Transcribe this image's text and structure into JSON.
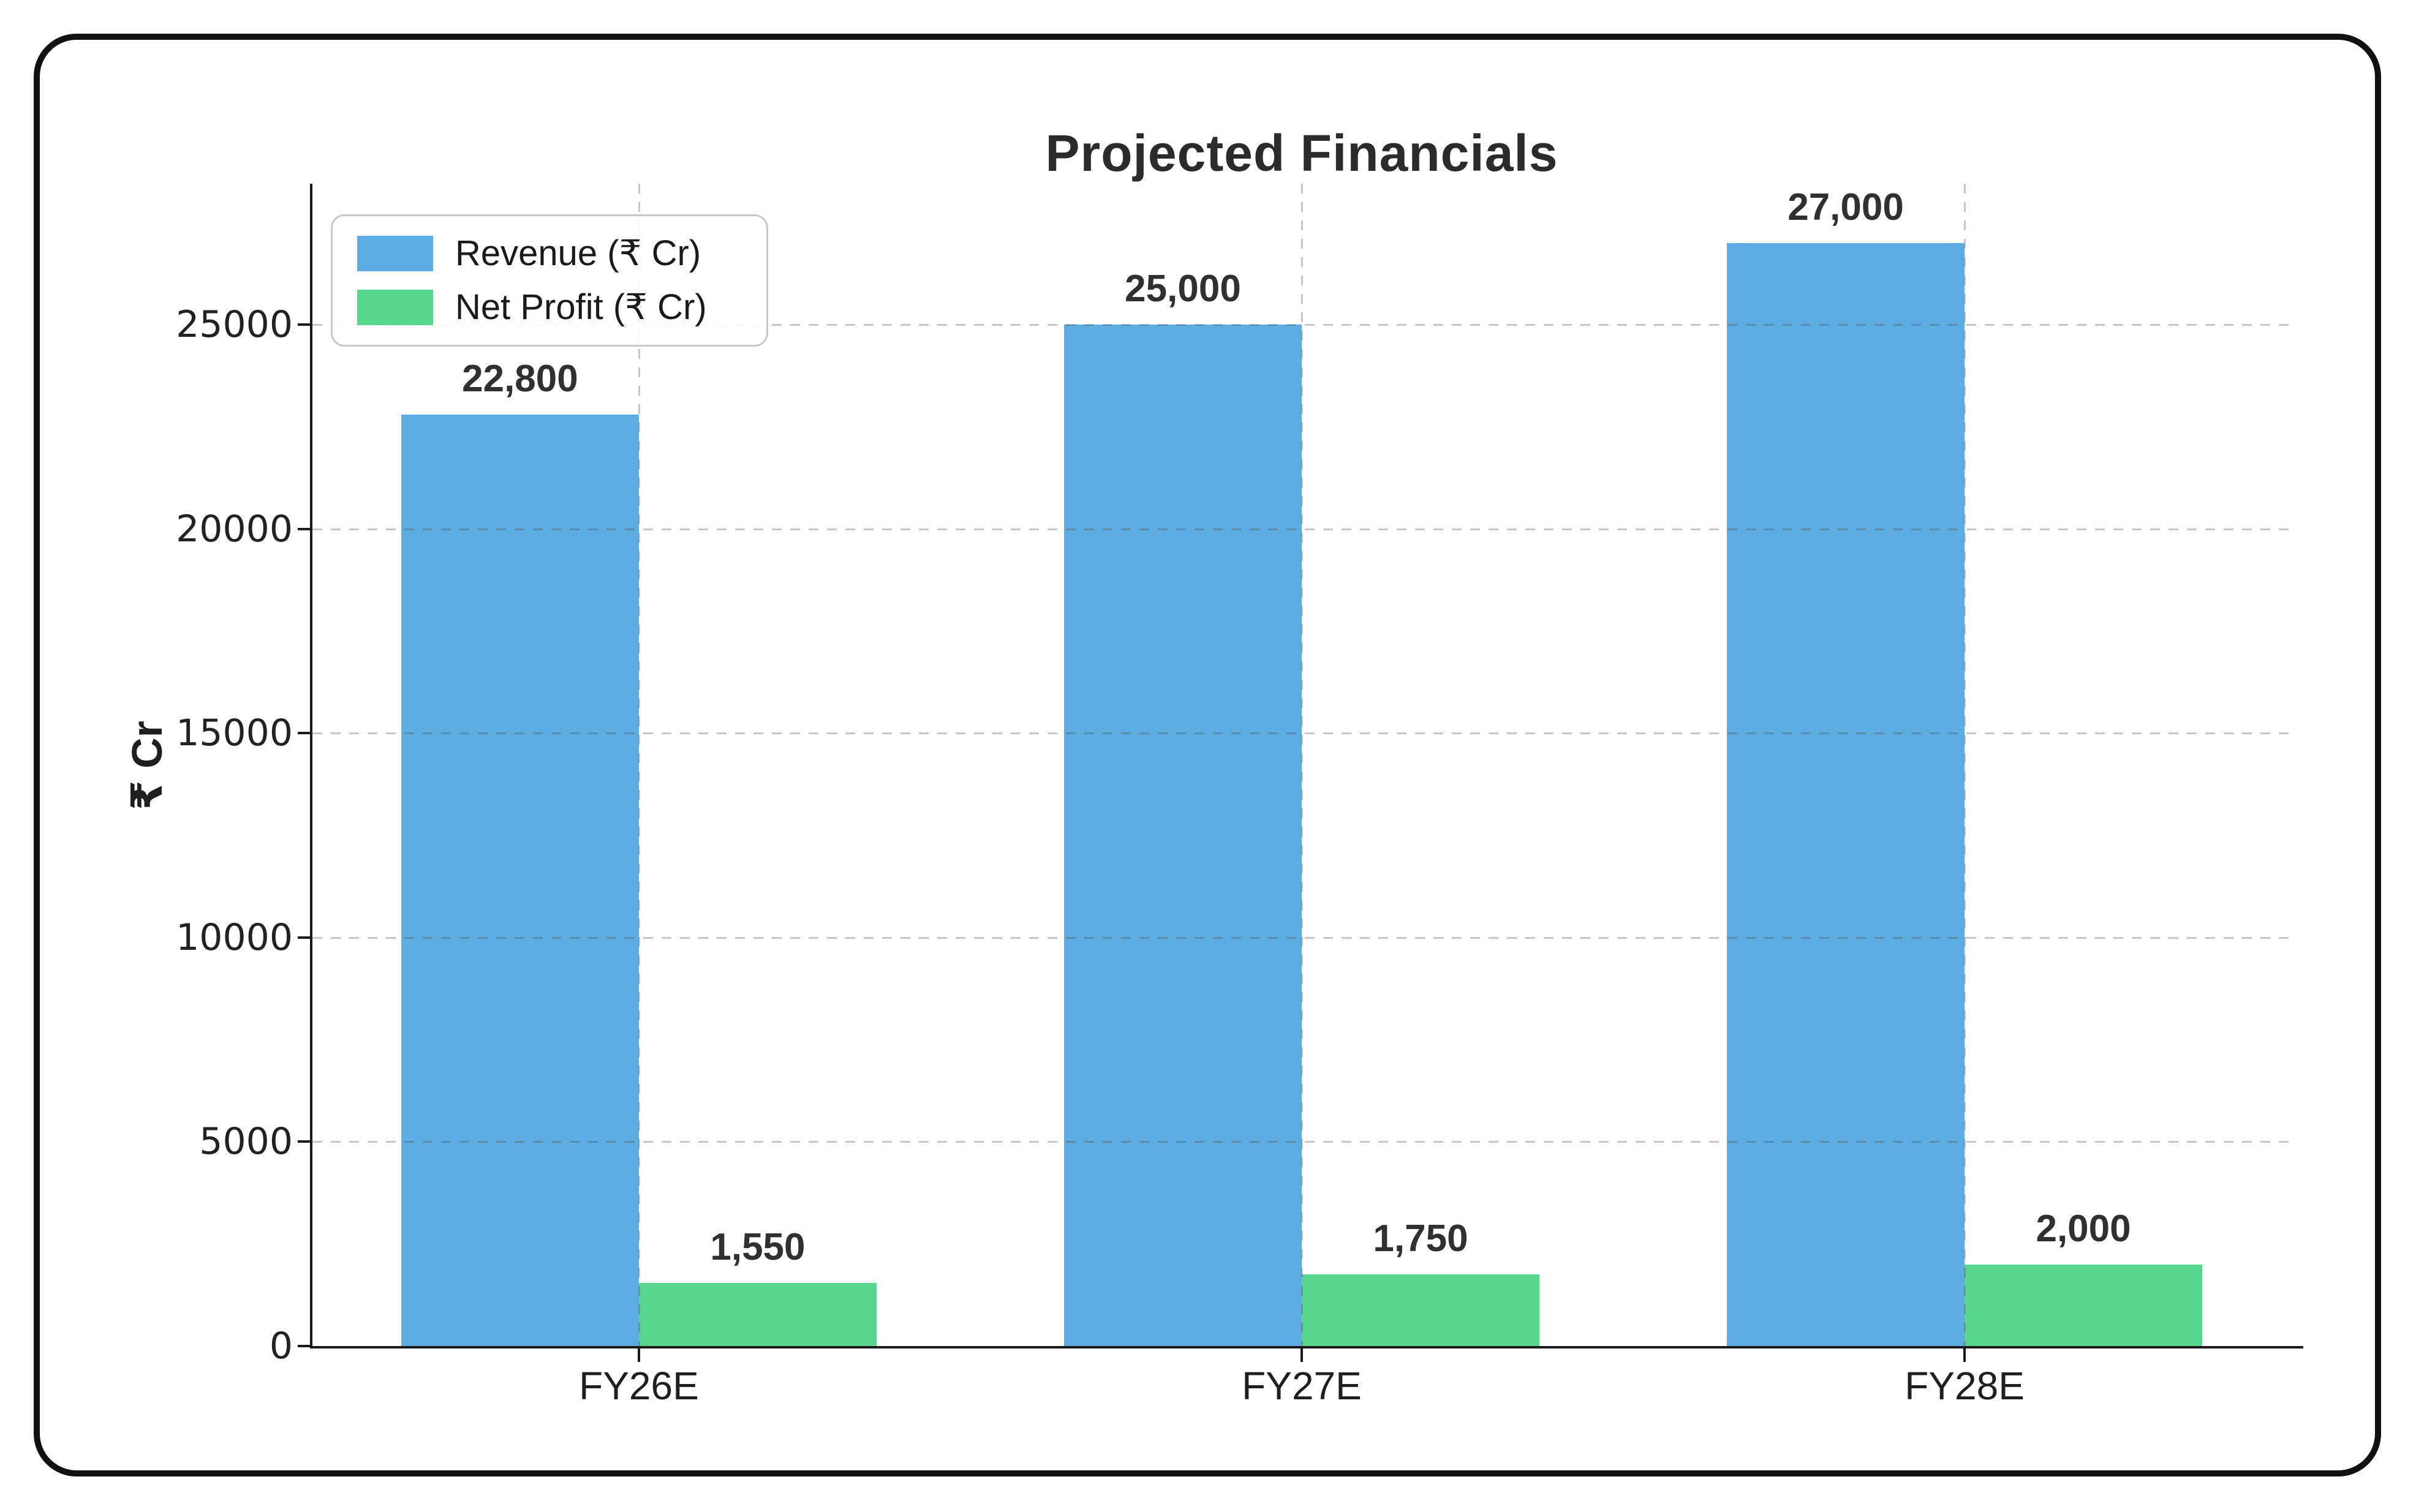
{
  "figure": {
    "background": "#ffffff",
    "frame_border_color": "#111111",
    "grid_color": "#c9c9c9",
    "text_color": "#2b2b2b"
  },
  "chart_data": {
    "type": "bar",
    "title": "Projected Financials",
    "ylabel": "₹ Cr",
    "categories": [
      "FY26E",
      "FY27E",
      "FY28E"
    ],
    "series": [
      {
        "name": "Revenue (₹ Cr)",
        "color": "#5DADE2",
        "values": [
          22800,
          25000,
          27000
        ],
        "value_labels": [
          "22,800",
          "25,000",
          "27,000"
        ]
      },
      {
        "name": "Net Profit (₹ Cr)",
        "color": "#58D68D",
        "values": [
          1550,
          1750,
          2000
        ],
        "value_labels": [
          "1,550",
          "1,750",
          "2,000"
        ]
      }
    ],
    "yticks": [
      0,
      5000,
      10000,
      15000,
      20000,
      25000
    ],
    "ytick_labels": [
      "0",
      "5000",
      "10000",
      "15000",
      "20000",
      "25000"
    ],
    "ylim": [
      0,
      28450
    ],
    "grid": "dashed-both-axes",
    "legend_position": "upper-left"
  }
}
